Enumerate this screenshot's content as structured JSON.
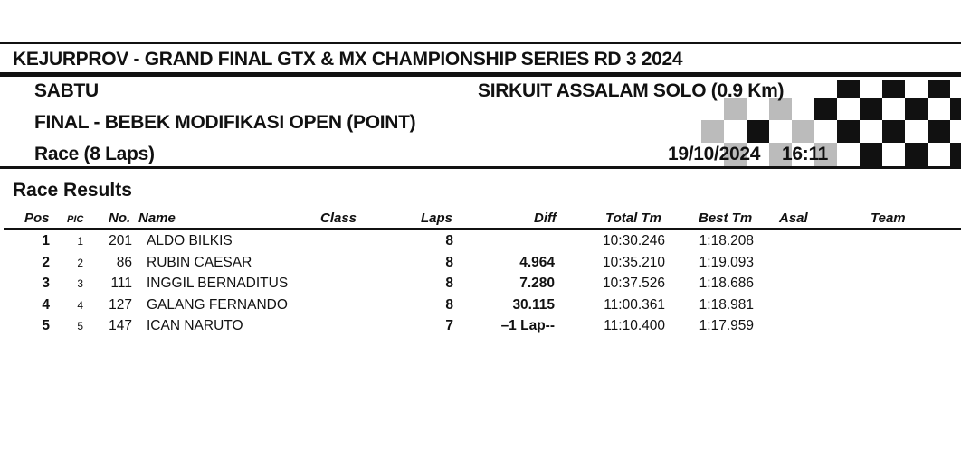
{
  "header": {
    "event_title": "KEJURPROV - GRAND FINAL GTX & MX CHAMPIONSHIP SERIES RD 3 2024",
    "day": "SABTU",
    "circuit": "SIRKUIT ASSALAM SOLO (0.9 Km)",
    "session": "FINAL - BEBEK MODIFIKASI OPEN (POINT)",
    "race": "Race (8 Laps)",
    "date": "19/10/2024",
    "time": "16:11"
  },
  "results": {
    "title": "Race Results",
    "columns": {
      "pos": "Pos",
      "pic": "PIC",
      "no": "No.",
      "name": "Name",
      "class": "Class",
      "laps": "Laps",
      "diff": "Diff",
      "total": "Total Tm",
      "best": "Best Tm",
      "asal": "Asal",
      "team": "Team"
    },
    "rows": [
      {
        "pos": "1",
        "pic": "1",
        "no": "201",
        "name": "ALDO BILKIS",
        "class": "",
        "laps": "8",
        "diff": "",
        "total": "10:30.246",
        "best": "1:18.208",
        "asal": "",
        "team": ""
      },
      {
        "pos": "2",
        "pic": "2",
        "no": "86",
        "name": "RUBIN CAESAR",
        "class": "",
        "laps": "8",
        "diff": "4.964",
        "total": "10:35.210",
        "best": "1:19.093",
        "asal": "",
        "team": ""
      },
      {
        "pos": "3",
        "pic": "3",
        "no": "111",
        "name": "INGGIL BERNADITUS",
        "class": "",
        "laps": "8",
        "diff": "7.280",
        "total": "10:37.526",
        "best": "1:18.686",
        "asal": "",
        "team": ""
      },
      {
        "pos": "4",
        "pic": "4",
        "no": "127",
        "name": "GALANG FERNANDO",
        "class": "",
        "laps": "8",
        "diff": "30.115",
        "total": "11:00.361",
        "best": "1:18.981",
        "asal": "",
        "team": ""
      },
      {
        "pos": "5",
        "pic": "5",
        "no": "147",
        "name": "ICAN NARUTO",
        "class": "",
        "laps": "7",
        "diff": "–1 Lap--",
        "total": "11:10.400",
        "best": "1:17.959",
        "asal": "",
        "team": ""
      }
    ]
  }
}
